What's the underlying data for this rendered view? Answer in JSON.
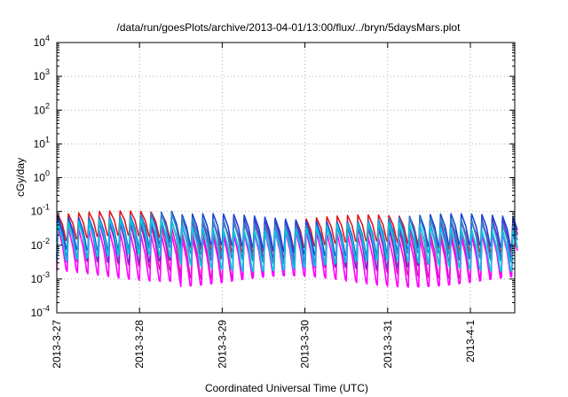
{
  "chart_data": {
    "type": "line",
    "title": "/data/run/goesPlots/archive/2013-04-01/13:00/flux/../bryn/5daysMars.plot",
    "xlabel": "Coordinated Universal Time (UTC)",
    "ylabel": "cGy/day",
    "yscale": "log",
    "ylim": [
      0.0001,
      10000
    ],
    "y_ticks": [
      {
        "base": "10",
        "exp": "-4"
      },
      {
        "base": "10",
        "exp": "-3"
      },
      {
        "base": "10",
        "exp": "-2"
      },
      {
        "base": "10",
        "exp": "-1"
      },
      {
        "base": "10",
        "exp": "0"
      },
      {
        "base": "10",
        "exp": "1"
      },
      {
        "base": "10",
        "exp": "2"
      },
      {
        "base": "10",
        "exp": "3"
      },
      {
        "base": "10",
        "exp": "4"
      }
    ],
    "x_ticks": [
      "2013-3-27",
      "2013-3-28",
      "2013-3-29",
      "2013-3-30",
      "2013-3-31",
      "2013-4-1"
    ],
    "xlim_days": [
      0,
      5.6
    ],
    "grid": true,
    "legend": "none",
    "period_hours": 3,
    "series": [
      {
        "color": "#e4161c",
        "peak": 0.06,
        "trough": 0.009
      },
      {
        "color": "#d020a0",
        "peak": 0.03,
        "trough": 0.0015
      },
      {
        "color": "#ff00ff",
        "peak": 0.02,
        "trough": 0.00085
      },
      {
        "color": "#7b2cc9",
        "peak": 0.045,
        "trough": 0.003
      },
      {
        "color": "#1a45d6",
        "peak": 0.065,
        "trough": 0.007
      },
      {
        "color": "#2f86c8",
        "peak": 0.05,
        "trough": 0.004
      },
      {
        "color": "#00c8e0",
        "peak": 0.035,
        "trough": 0.0025
      }
    ]
  }
}
